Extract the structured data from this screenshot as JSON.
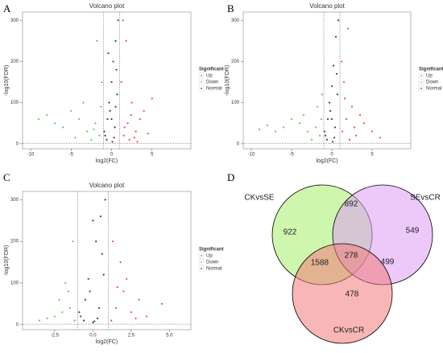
{
  "chart_data": [
    {
      "type": "scatter",
      "panel": "A",
      "title": "Volcano plot",
      "x_label": "log2(FC)",
      "y_label": "-log10(FDR)",
      "xlim": [
        -11,
        9.8
      ],
      "ylim": [
        -12,
        320
      ],
      "xticks": [
        -10,
        -5,
        0,
        5
      ],
      "yticks": [
        0,
        100,
        200,
        300
      ],
      "thresholds": {
        "x": [
          -1,
          1
        ],
        "y": 1.3
      },
      "legend_title": "Significant",
      "series": [
        {
          "name": "Up",
          "color": "#e8201c",
          "x": [
            1.5,
            2,
            2.5,
            3,
            4,
            1.2,
            1.8,
            3.5,
            5,
            2.2,
            1.4,
            2.8,
            1.6,
            2.4,
            3.2,
            4.5
          ],
          "values": [
            20,
            50,
            100,
            30,
            80,
            150,
            250,
            60,
            110,
            10,
            300,
            15,
            40,
            70,
            5,
            25
          ]
        },
        {
          "name": "Down",
          "color": "#1fcc1f",
          "x": [
            -1.5,
            -2,
            -3,
            -4,
            -5,
            -6,
            -8,
            -1.2,
            -2.5,
            -3.5,
            -7,
            -1.8,
            -1.3,
            -2.2,
            -4.5,
            -9
          ],
          "values": [
            20,
            50,
            30,
            60,
            80,
            40,
            70,
            150,
            10,
            100,
            50,
            250,
            90,
            35,
            15,
            60
          ]
        },
        {
          "name": "Normal",
          "color": "#111111",
          "x": [
            -0.8,
            -0.5,
            -0.3,
            0,
            0.2,
            0.5,
            0.7,
            -0.6,
            0.1,
            0.4,
            -0.2,
            0.8,
            -0.9,
            0.6,
            0.3,
            -0.4,
            0,
            0.5
          ],
          "values": [
            20,
            60,
            100,
            150,
            200,
            250,
            120,
            10,
            5,
            40,
            80,
            300,
            30,
            180,
            15,
            220,
            60,
            90
          ]
        }
      ]
    },
    {
      "type": "scatter",
      "panel": "B",
      "title": "Volcano plot",
      "x_label": "log2(FC)",
      "y_label": "-log10(FDR)",
      "xlim": [
        -11,
        9.8
      ],
      "ylim": [
        -12,
        320
      ],
      "xticks": [
        -10,
        -5,
        0,
        5
      ],
      "yticks": [
        0,
        100,
        200,
        300
      ],
      "thresholds": {
        "x": [
          -1,
          1
        ],
        "y": 1.3
      },
      "legend_title": "Significant",
      "series": [
        {
          "name": "Up",
          "color": "#e8201c",
          "x": [
            1.3,
            1.8,
            2.5,
            3,
            4,
            1.2,
            2,
            3.5,
            5,
            2.2,
            1.5,
            2.8,
            1.6,
            6
          ],
          "values": [
            30,
            60,
            90,
            20,
            50,
            200,
            280,
            70,
            30,
            10,
            150,
            40,
            110,
            15
          ]
        },
        {
          "name": "Down",
          "color": "#1fcc1f",
          "x": [
            -1.5,
            -2,
            -3,
            -4,
            -5,
            -6,
            -8,
            -1.2,
            -2.5,
            -3.5,
            -7,
            -1.8,
            -1.3,
            -9
          ],
          "values": [
            20,
            40,
            30,
            50,
            60,
            40,
            45,
            120,
            10,
            70,
            30,
            90,
            60,
            35
          ]
        },
        {
          "name": "Normal",
          "color": "#111111",
          "x": [
            -0.8,
            -0.5,
            -0.3,
            0,
            0.2,
            0.5,
            0.7,
            -0.6,
            0.1,
            0.4,
            -0.2,
            0.8,
            -0.9,
            0.6,
            0.3,
            0
          ],
          "values": [
            20,
            60,
            100,
            140,
            190,
            260,
            120,
            10,
            5,
            40,
            80,
            300,
            30,
            170,
            15,
            60
          ]
        }
      ]
    },
    {
      "type": "scatter",
      "panel": "C",
      "title": "Volcano plot",
      "x_label": "log2(FC)",
      "y_label": "-log10(FDR)",
      "xlim": [
        -4.6,
        6.4
      ],
      "ylim": [
        -12,
        320
      ],
      "xticks": [
        -2.5,
        {
          "value": 0,
          "label": "0.0"
        },
        2.5,
        {
          "value": 5,
          "label": "5.0"
        }
      ],
      "yticks": [
        0,
        100,
        200,
        300
      ],
      "thresholds": {
        "x": [
          -1,
          1
        ],
        "y": 1.3
      },
      "legend_title": "Significant",
      "series": [
        {
          "name": "Up",
          "color": "#e8201c",
          "x": [
            1.2,
            1.5,
            2,
            2.5,
            3,
            1.8,
            3.5,
            4.5,
            1.3,
            2.2,
            2.8,
            1.6
          ],
          "values": [
            10,
            40,
            80,
            30,
            60,
            150,
            20,
            50,
            200,
            110,
            15,
            90
          ]
        },
        {
          "name": "Down",
          "color": "#1fcc1f",
          "x": [
            -1.2,
            -1.5,
            -2,
            -2.5,
            -3,
            -1.8,
            -3.5,
            -1.3,
            -2.2,
            -1.6
          ],
          "values": [
            10,
            40,
            30,
            20,
            15,
            100,
            10,
            200,
            60,
            80
          ]
        },
        {
          "name": "Normal",
          "color": "#111111",
          "x": [
            -0.8,
            -0.5,
            -0.3,
            0,
            0.2,
            0.5,
            0.7,
            -0.6,
            0.1,
            0.4,
            -0.2,
            0.8,
            -0.9,
            0.6,
            0.3,
            0
          ],
          "values": [
            20,
            60,
            110,
            5,
            200,
            260,
            120,
            10,
            8,
            40,
            80,
            300,
            30,
            170,
            15,
            250
          ]
        }
      ]
    },
    {
      "type": "venn",
      "panel": "D",
      "sets": [
        {
          "name": "CKvsSE",
          "color": "#a8ef6a"
        },
        {
          "name": "SEvsCR",
          "color": "#dc9cf2"
        },
        {
          "name": "CKvsCR",
          "color": "#f27a7a"
        }
      ],
      "values": [
        922,
        892,
        549,
        1588,
        278,
        499,
        478
      ]
    }
  ]
}
